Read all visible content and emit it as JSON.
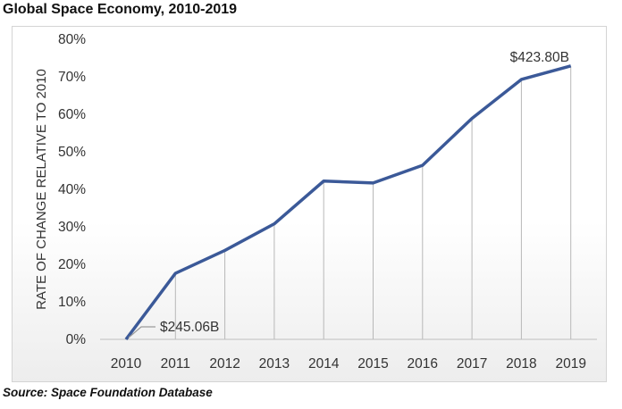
{
  "header": {
    "title": "Global Space Economy, 2010-2019"
  },
  "footer": {
    "source": "Source: Space Foundation Database"
  },
  "colors": {
    "line": "#3b5998",
    "gridline": "#b8b8b8",
    "axis": "#bfbfbf"
  },
  "chart_data": {
    "type": "line",
    "title": "Global Space Economy, 2010-2019",
    "xlabel": "",
    "ylabel": "RATE OF CHANGE RELATIVE TO 2010",
    "categories": [
      "2010",
      "2011",
      "2012",
      "2013",
      "2014",
      "2015",
      "2016",
      "2017",
      "2018",
      "2019"
    ],
    "values": [
      0,
      17.6,
      23.7,
      30.8,
      42.2,
      41.7,
      46.4,
      58.9,
      69.3,
      72.9
    ],
    "ylim": [
      0,
      80
    ],
    "yticks": [
      "0%",
      "10%",
      "20%",
      "30%",
      "40%",
      "50%",
      "60%",
      "70%",
      "80%"
    ],
    "grid": "vertical",
    "annotations": [
      {
        "label": "$245.06B",
        "category": "2010"
      },
      {
        "label": "$423.80B",
        "category": "2019"
      }
    ]
  }
}
